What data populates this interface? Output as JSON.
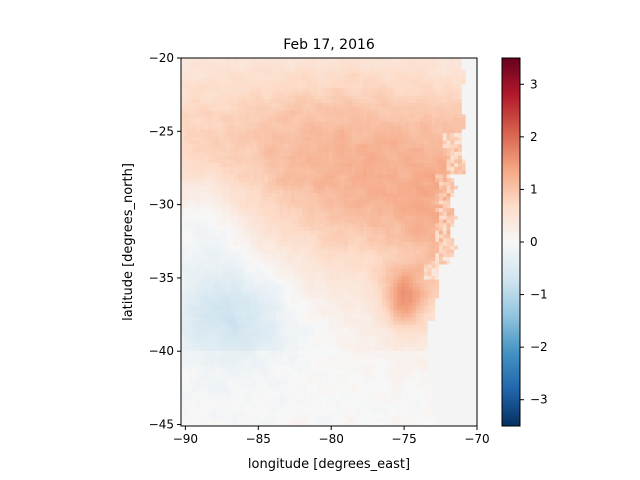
{
  "chart_data": {
    "type": "heatmap",
    "title": "Feb 17, 2016",
    "xlabel": "longitude [degrees_east]",
    "ylabel": "latitude [degrees_north]",
    "xlim": [
      -90.3,
      -70.0
    ],
    "ylim": [
      -45.1,
      -20.0
    ],
    "x_ticks": [
      -90,
      -85,
      -80,
      -75,
      -70
    ],
    "y_ticks": [
      -20,
      -25,
      -30,
      -35,
      -40,
      -45
    ],
    "colorbar": {
      "colormap": "RdBu_r",
      "vmin": -3.5,
      "vmax": 3.5,
      "ticks": [
        -3,
        -2,
        -1,
        0,
        1,
        2,
        3
      ]
    },
    "grid": false,
    "description_of_field": {
      "land_color": "#f4f4f4",
      "features": [
        {
          "region": "north-central",
          "lon": [
            -88,
            -76
          ],
          "lat": [
            -33,
            -20
          ],
          "value": 1.0
        },
        {
          "region": "coastal hotspot",
          "lon": [
            -76,
            -74
          ],
          "lat": [
            -38,
            -35
          ],
          "value": 1.8
        },
        {
          "region": "southwest cool patch",
          "lon": [
            -90,
            -82
          ],
          "lat": [
            -42,
            -33
          ],
          "value": -0.4
        }
      ]
    }
  }
}
